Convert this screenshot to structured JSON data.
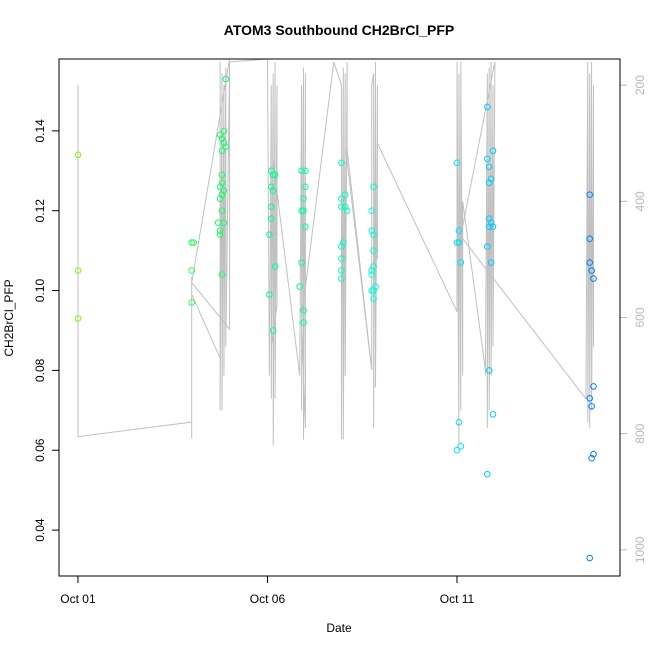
{
  "chart_data": {
    "type": "scatter",
    "title": "ATOM3 Southbound CH2BrCl_PFP",
    "xlabel": "Date",
    "ylabel": "CH2BrCl_PFP",
    "x_ticks": [
      {
        "label": "Oct 01",
        "day": 1
      },
      {
        "label": "Oct 06",
        "day": 6
      },
      {
        "label": "Oct 11",
        "day": 11
      }
    ],
    "y_ticks": [
      0.04,
      0.06,
      0.08,
      0.1,
      0.12,
      0.14
    ],
    "y_tick_labels": [
      "0.04",
      "0.06",
      "0.08",
      "0.10",
      "0.12",
      "0.14"
    ],
    "xlim": [
      0.5,
      15.3
    ],
    "ylim": [
      0.0285,
      0.158
    ],
    "right_axis": {
      "ticks": [
        200,
        400,
        600,
        800,
        1000
      ],
      "tick_labels": [
        "200",
        "400",
        "600",
        "800",
        "1000"
      ],
      "range": [
        155,
        1045
      ],
      "inverted": true,
      "color": "#b8b8b8"
    },
    "grid": false,
    "legend": "none",
    "point_color_ramp": [
      "#80ff00",
      "#00ff80",
      "#00ffff",
      "#0080ff"
    ],
    "profile_line_color": "#c0c0c0",
    "points": [
      {
        "x": 1.0,
        "y": 0.134
      },
      {
        "x": 1.0,
        "y": 0.105
      },
      {
        "x": 1.0,
        "y": 0.093
      },
      {
        "x": 4.0,
        "y": 0.112
      },
      {
        "x": 4.05,
        "y": 0.112
      },
      {
        "x": 4.0,
        "y": 0.105
      },
      {
        "x": 4.0,
        "y": 0.097
      },
      {
        "x": 4.75,
        "y": 0.139
      },
      {
        "x": 4.8,
        "y": 0.138
      },
      {
        "x": 4.85,
        "y": 0.137
      },
      {
        "x": 4.9,
        "y": 0.136
      },
      {
        "x": 4.8,
        "y": 0.135
      },
      {
        "x": 4.8,
        "y": 0.129
      },
      {
        "x": 4.8,
        "y": 0.127
      },
      {
        "x": 4.75,
        "y": 0.126
      },
      {
        "x": 4.85,
        "y": 0.125
      },
      {
        "x": 4.8,
        "y": 0.124
      },
      {
        "x": 4.75,
        "y": 0.123
      },
      {
        "x": 4.8,
        "y": 0.12
      },
      {
        "x": 4.7,
        "y": 0.117
      },
      {
        "x": 4.85,
        "y": 0.117
      },
      {
        "x": 4.75,
        "y": 0.115
      },
      {
        "x": 4.75,
        "y": 0.114
      },
      {
        "x": 4.8,
        "y": 0.104
      },
      {
        "x": 4.9,
        "y": 0.153
      },
      {
        "x": 4.85,
        "y": 0.14
      },
      {
        "x": 6.1,
        "y": 0.13
      },
      {
        "x": 6.15,
        "y": 0.129
      },
      {
        "x": 6.2,
        "y": 0.129
      },
      {
        "x": 6.1,
        "y": 0.126
      },
      {
        "x": 6.15,
        "y": 0.125
      },
      {
        "x": 6.1,
        "y": 0.121
      },
      {
        "x": 6.1,
        "y": 0.118
      },
      {
        "x": 6.05,
        "y": 0.114
      },
      {
        "x": 6.2,
        "y": 0.106
      },
      {
        "x": 6.05,
        "y": 0.099
      },
      {
        "x": 6.15,
        "y": 0.09
      },
      {
        "x": 6.9,
        "y": 0.13
      },
      {
        "x": 7.0,
        "y": 0.13
      },
      {
        "x": 7.0,
        "y": 0.126
      },
      {
        "x": 6.95,
        "y": 0.123
      },
      {
        "x": 6.9,
        "y": 0.12
      },
      {
        "x": 6.95,
        "y": 0.12
      },
      {
        "x": 7.0,
        "y": 0.116
      },
      {
        "x": 6.9,
        "y": 0.107
      },
      {
        "x": 6.85,
        "y": 0.101
      },
      {
        "x": 6.95,
        "y": 0.095
      },
      {
        "x": 6.95,
        "y": 0.092
      },
      {
        "x": 7.95,
        "y": 0.132
      },
      {
        "x": 8.05,
        "y": 0.124
      },
      {
        "x": 7.95,
        "y": 0.123
      },
      {
        "x": 7.95,
        "y": 0.121
      },
      {
        "x": 8.05,
        "y": 0.121
      },
      {
        "x": 8.1,
        "y": 0.12
      },
      {
        "x": 8.0,
        "y": 0.112
      },
      {
        "x": 7.95,
        "y": 0.111
      },
      {
        "x": 7.95,
        "y": 0.108
      },
      {
        "x": 7.95,
        "y": 0.105
      },
      {
        "x": 7.95,
        "y": 0.103
      },
      {
        "x": 8.8,
        "y": 0.126
      },
      {
        "x": 8.75,
        "y": 0.12
      },
      {
        "x": 8.75,
        "y": 0.115
      },
      {
        "x": 8.8,
        "y": 0.114
      },
      {
        "x": 8.8,
        "y": 0.11
      },
      {
        "x": 8.8,
        "y": 0.106
      },
      {
        "x": 8.75,
        "y": 0.105
      },
      {
        "x": 8.75,
        "y": 0.104
      },
      {
        "x": 8.85,
        "y": 0.101
      },
      {
        "x": 8.75,
        "y": 0.1
      },
      {
        "x": 8.8,
        "y": 0.1
      },
      {
        "x": 8.8,
        "y": 0.098
      },
      {
        "x": 11.0,
        "y": 0.132
      },
      {
        "x": 11.05,
        "y": 0.115
      },
      {
        "x": 11.0,
        "y": 0.112
      },
      {
        "x": 11.05,
        "y": 0.112
      },
      {
        "x": 11.1,
        "y": 0.107
      },
      {
        "x": 11.05,
        "y": 0.067
      },
      {
        "x": 11.1,
        "y": 0.061
      },
      {
        "x": 11.0,
        "y": 0.06
      },
      {
        "x": 11.8,
        "y": 0.146
      },
      {
        "x": 11.95,
        "y": 0.135
      },
      {
        "x": 11.8,
        "y": 0.133
      },
      {
        "x": 11.85,
        "y": 0.131
      },
      {
        "x": 11.9,
        "y": 0.128
      },
      {
        "x": 11.85,
        "y": 0.127
      },
      {
        "x": 11.85,
        "y": 0.118
      },
      {
        "x": 11.9,
        "y": 0.117
      },
      {
        "x": 11.85,
        "y": 0.116
      },
      {
        "x": 11.95,
        "y": 0.116
      },
      {
        "x": 11.8,
        "y": 0.111
      },
      {
        "x": 11.9,
        "y": 0.107
      },
      {
        "x": 11.85,
        "y": 0.08
      },
      {
        "x": 11.95,
        "y": 0.069
      },
      {
        "x": 11.8,
        "y": 0.054
      },
      {
        "x": 14.5,
        "y": 0.124
      },
      {
        "x": 14.5,
        "y": 0.113
      },
      {
        "x": 14.5,
        "y": 0.107
      },
      {
        "x": 14.55,
        "y": 0.105
      },
      {
        "x": 14.6,
        "y": 0.103
      },
      {
        "x": 14.6,
        "y": 0.076
      },
      {
        "x": 14.5,
        "y": 0.073
      },
      {
        "x": 14.55,
        "y": 0.071
      },
      {
        "x": 14.6,
        "y": 0.059
      },
      {
        "x": 14.55,
        "y": 0.058
      },
      {
        "x": 14.5,
        "y": 0.033
      }
    ],
    "profile_lines": [
      [
        [
          1.0,
          200
        ],
        [
          1.0,
          805
        ],
        [
          4.0,
          780
        ],
        [
          4.0,
          808
        ],
        [
          4.0,
          530
        ],
        [
          4.0,
          560
        ],
        [
          4.75,
          670
        ]
      ],
      [
        [
          4.75,
          160
        ],
        [
          4.75,
          760
        ],
        [
          4.8,
          180
        ],
        [
          4.8,
          760
        ],
        [
          4.85,
          200
        ],
        [
          4.85,
          700
        ],
        [
          4.9,
          170
        ],
        [
          4.9,
          650
        ],
        [
          5.0,
          160
        ],
        [
          5.0,
          620
        ],
        [
          4.0,
          540
        ],
        [
          5.0,
          155
        ]
      ],
      [
        [
          5.0,
          160
        ],
        [
          6.0,
          155
        ],
        [
          6.05,
          700
        ],
        [
          6.1,
          200
        ],
        [
          6.1,
          740
        ],
        [
          6.15,
          180
        ],
        [
          6.15,
          820
        ],
        [
          6.2,
          160
        ],
        [
          6.2,
          740
        ],
        [
          6.25,
          200
        ],
        [
          6.25,
          580
        ],
        [
          6.1,
          650
        ]
      ],
      [
        [
          6.15,
          330
        ],
        [
          6.85,
          700
        ],
        [
          6.9,
          200
        ],
        [
          6.9,
          760
        ],
        [
          6.95,
          170
        ],
        [
          6.95,
          810
        ],
        [
          7.0,
          180
        ],
        [
          7.0,
          790
        ],
        [
          6.9,
          600
        ],
        [
          7.75,
          160
        ]
      ],
      [
        [
          7.75,
          160
        ],
        [
          7.95,
          200
        ],
        [
          7.95,
          810
        ],
        [
          8.0,
          170
        ],
        [
          8.0,
          810
        ],
        [
          8.05,
          180
        ],
        [
          8.05,
          700
        ],
        [
          8.1,
          160
        ],
        [
          8.1,
          330
        ],
        [
          8.75,
          690
        ]
      ],
      [
        [
          8.1,
          310
        ],
        [
          8.75,
          690
        ],
        [
          8.75,
          200
        ],
        [
          8.8,
          180
        ],
        [
          8.8,
          790
        ],
        [
          8.85,
          160
        ],
        [
          8.85,
          720
        ],
        [
          8.9,
          200
        ],
        [
          8.9,
          500
        ]
      ],
      [
        [
          8.9,
          300
        ],
        [
          11.0,
          590
        ],
        [
          11.0,
          160
        ],
        [
          11.05,
          820
        ],
        [
          11.05,
          180
        ],
        [
          11.1,
          760
        ],
        [
          11.1,
          160
        ],
        [
          11.15,
          700
        ],
        [
          11.15,
          400
        ],
        [
          11.75,
          690
        ]
      ],
      [
        [
          11.75,
          700
        ],
        [
          11.8,
          180
        ],
        [
          11.8,
          790
        ],
        [
          11.85,
          170
        ],
        [
          11.85,
          760
        ],
        [
          11.9,
          160
        ],
        [
          11.9,
          700
        ],
        [
          11.95,
          200
        ],
        [
          11.95,
          650
        ],
        [
          12.0,
          160
        ],
        [
          11.1,
          460
        ],
        [
          14.4,
          740
        ]
      ],
      [
        [
          14.4,
          740
        ],
        [
          14.45,
          160
        ],
        [
          14.45,
          780
        ],
        [
          14.5,
          180
        ],
        [
          14.5,
          790
        ],
        [
          14.55,
          160
        ],
        [
          14.55,
          760
        ],
        [
          14.6,
          200
        ],
        [
          14.6,
          650
        ]
      ]
    ]
  }
}
